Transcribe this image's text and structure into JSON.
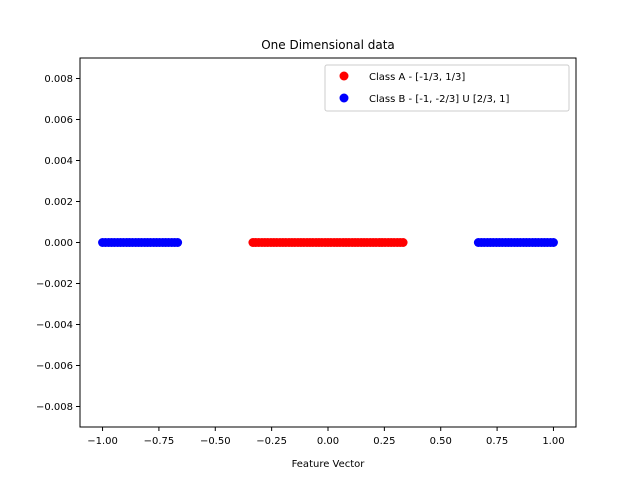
{
  "chart_data": {
    "type": "scatter",
    "title": "One Dimensional data",
    "xlabel": "Feature Vector",
    "ylabel": "",
    "xlim": [
      -1.1,
      1.1
    ],
    "ylim": [
      -0.009,
      0.009
    ],
    "xticks": [
      -1.0,
      -0.75,
      -0.5,
      -0.25,
      0.0,
      0.25,
      0.5,
      0.75,
      1.0
    ],
    "xtick_labels": [
      "−1.00",
      "−0.75",
      "−0.50",
      "−0.25",
      "0.00",
      "0.25",
      "0.50",
      "0.75",
      "1.00"
    ],
    "yticks": [
      -0.008,
      -0.006,
      -0.004,
      -0.002,
      0.0,
      0.002,
      0.004,
      0.006,
      0.008
    ],
    "ytick_labels": [
      "−0.008",
      "−0.006",
      "−0.004",
      "−0.002",
      "0.000",
      "0.002",
      "0.004",
      "0.006",
      "0.008"
    ],
    "grid": false,
    "legend_position": "top-right",
    "series": [
      {
        "name": "Class A - [-1/3, 1/3]",
        "color": "#ff0000",
        "ranges": [
          [
            -0.3333,
            0.3333
          ]
        ],
        "x": [
          -0.333,
          -0.32,
          -0.307,
          -0.293,
          -0.28,
          -0.267,
          -0.253,
          -0.24,
          -0.227,
          -0.213,
          -0.2,
          -0.187,
          -0.173,
          -0.16,
          -0.147,
          -0.133,
          -0.12,
          -0.107,
          -0.093,
          -0.08,
          -0.067,
          -0.053,
          -0.04,
          -0.027,
          -0.013,
          0.0,
          0.013,
          0.027,
          0.04,
          0.053,
          0.067,
          0.08,
          0.093,
          0.107,
          0.12,
          0.133,
          0.147,
          0.16,
          0.173,
          0.187,
          0.2,
          0.213,
          0.227,
          0.24,
          0.253,
          0.267,
          0.28,
          0.293,
          0.307,
          0.32,
          0.333
        ],
        "y_value": 0.0
      },
      {
        "name": "Class B - [-1, -2/3] U [2/3, 1]",
        "color": "#0000ff",
        "ranges": [
          [
            -1.0,
            -0.6667
          ],
          [
            0.6667,
            1.0
          ]
        ],
        "x": [
          -1.0,
          -0.987,
          -0.973,
          -0.96,
          -0.947,
          -0.933,
          -0.92,
          -0.907,
          -0.893,
          -0.88,
          -0.867,
          -0.853,
          -0.84,
          -0.827,
          -0.813,
          -0.8,
          -0.787,
          -0.773,
          -0.76,
          -0.747,
          -0.733,
          -0.72,
          -0.707,
          -0.693,
          -0.68,
          -0.667,
          0.667,
          0.68,
          0.693,
          0.707,
          0.72,
          0.733,
          0.747,
          0.76,
          0.773,
          0.787,
          0.8,
          0.813,
          0.827,
          0.84,
          0.853,
          0.867,
          0.88,
          0.893,
          0.907,
          0.92,
          0.933,
          0.947,
          0.96,
          0.973,
          0.987,
          1.0
        ],
        "y_value": 0.0
      }
    ]
  }
}
